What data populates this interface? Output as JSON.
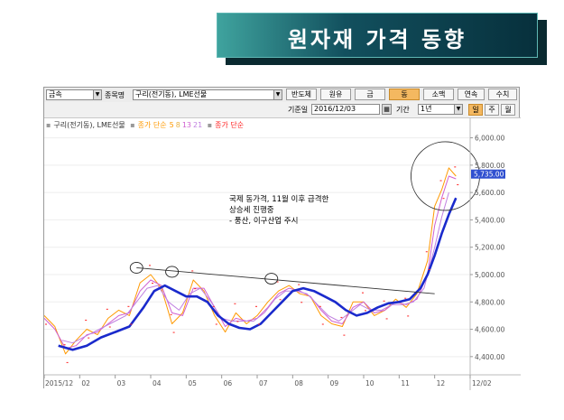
{
  "title": "원자재 가격 동향",
  "toolbar": {
    "category_select": "금속",
    "item_label": "종목명",
    "item_select": "구리(전기동), LME선물",
    "buttons": [
      "반도체",
      "원유",
      "금",
      "동",
      "소맥",
      "연속",
      "수치"
    ],
    "active_button": "동",
    "base_date_label": "기준일",
    "base_date_value": "2016/12/03",
    "period_label": "기간",
    "period_value": "1년",
    "unit_buttons": [
      "일",
      "주",
      "월"
    ],
    "active_unit": "일"
  },
  "legend": {
    "series_name": "구리(전기동), LME선물",
    "ma_label": "종가 단순",
    "ma_periods": [
      "5",
      "8",
      "13",
      "21"
    ],
    "ma2_label": "종가 단순"
  },
  "colors": {
    "price": "#ff2020",
    "ma5": "#ff9900",
    "ma8": "#e8b040",
    "ma13": "#d060d0",
    "ma21": "#c080e0",
    "trend": "#1a2acc",
    "resistance": "#333333",
    "active_btn": "#f4b860"
  },
  "annotation": {
    "line1": "국제 동가격, 11월 이후 급격한",
    "line2": "상승세 진행중",
    "line3": "- 풍산, 이구산업 주시"
  },
  "chart_data": {
    "type": "line",
    "x_ticks": [
      "2015/12",
      "02",
      "03",
      "04",
      "05",
      "06",
      "07",
      "08",
      "09",
      "10",
      "11",
      "12",
      "12/02"
    ],
    "y_ticks": [
      "4,400.00",
      "4,600.00",
      "4,800.00",
      "5,000.00",
      "5,200.00",
      "5,400.00",
      "5,600.00",
      "5,800.00",
      "6,000.00"
    ],
    "ylim": [
      4280,
      6050
    ],
    "last_price_label": "5,735.00",
    "last_price": 5735,
    "series": [
      {
        "key": "ma5",
        "x": [
          0.0,
          0.3,
          0.6,
          0.9,
          1.2,
          1.5,
          1.8,
          2.1,
          2.4,
          2.7,
          3.0,
          3.3,
          3.6,
          3.9,
          4.2,
          4.5,
          4.8,
          5.1,
          5.4,
          5.7,
          6.0,
          6.3,
          6.6,
          6.9,
          7.2,
          7.5,
          7.8,
          8.1,
          8.4,
          8.7,
          9.0,
          9.3,
          9.6,
          9.9,
          10.2,
          10.5,
          10.8,
          11.0,
          11.2,
          11.4,
          11.6
        ],
        "values": [
          4700,
          4620,
          4420,
          4520,
          4600,
          4560,
          4680,
          4740,
          4700,
          4940,
          5000,
          4900,
          4640,
          4720,
          4960,
          4880,
          4700,
          4580,
          4720,
          4640,
          4700,
          4800,
          4880,
          4920,
          4860,
          4840,
          4700,
          4640,
          4620,
          4800,
          4800,
          4700,
          4740,
          4820,
          4760,
          4860,
          5100,
          5500,
          5620,
          5780,
          5720
        ]
      },
      {
        "key": "ma13",
        "x": [
          0.0,
          0.3,
          0.6,
          0.9,
          1.2,
          1.5,
          1.8,
          2.1,
          2.4,
          2.7,
          3.0,
          3.3,
          3.6,
          3.9,
          4.2,
          4.5,
          4.8,
          5.1,
          5.4,
          5.7,
          6.0,
          6.3,
          6.6,
          6.9,
          7.2,
          7.5,
          7.8,
          8.1,
          8.4,
          8.7,
          9.0,
          9.3,
          9.6,
          9.9,
          10.2,
          10.5,
          10.8,
          11.0,
          11.2,
          11.4,
          11.6
        ],
        "values": [
          4680,
          4600,
          4460,
          4480,
          4560,
          4580,
          4640,
          4700,
          4720,
          4880,
          4960,
          4920,
          4720,
          4700,
          4900,
          4900,
          4760,
          4620,
          4680,
          4660,
          4680,
          4760,
          4860,
          4900,
          4880,
          4840,
          4740,
          4660,
          4640,
          4760,
          4800,
          4720,
          4740,
          4800,
          4780,
          4820,
          5000,
          5360,
          5560,
          5720,
          5700
        ]
      },
      {
        "key": "ma21",
        "x": [
          0.5,
          0.8,
          1.1,
          1.4,
          1.7,
          2.0,
          2.3,
          2.6,
          2.9,
          3.2,
          3.5,
          3.8,
          4.1,
          4.4,
          4.7,
          5.0,
          5.3,
          5.6,
          5.9,
          6.2,
          6.5,
          6.8,
          7.1,
          7.4,
          7.7,
          8.0,
          8.3,
          8.6,
          8.9,
          9.2,
          9.5,
          9.8,
          10.1,
          10.4,
          10.7,
          11.0,
          11.2,
          11.4
        ],
        "values": [
          4520,
          4500,
          4540,
          4580,
          4620,
          4660,
          4700,
          4800,
          4900,
          4920,
          4800,
          4740,
          4860,
          4900,
          4800,
          4680,
          4660,
          4660,
          4660,
          4720,
          4820,
          4880,
          4880,
          4860,
          4780,
          4700,
          4660,
          4720,
          4780,
          4740,
          4740,
          4780,
          4780,
          4800,
          4900,
          5200,
          5420,
          5600
        ]
      },
      {
        "key": "trend",
        "x": [
          0.4,
          0.8,
          1.2,
          1.6,
          2.0,
          2.4,
          2.8,
          3.1,
          3.4,
          3.7,
          4.0,
          4.3,
          4.6,
          4.9,
          5.2,
          5.5,
          5.8,
          6.1,
          6.4,
          6.7,
          7.0,
          7.3,
          7.6,
          7.9,
          8.2,
          8.5,
          8.8,
          9.1,
          9.4,
          9.7,
          10.0,
          10.3,
          10.6,
          10.8,
          11.0,
          11.2,
          11.4,
          11.6
        ],
        "values": [
          4480,
          4450,
          4480,
          4540,
          4580,
          4620,
          4760,
          4880,
          4920,
          4880,
          4840,
          4840,
          4800,
          4700,
          4640,
          4610,
          4600,
          4640,
          4720,
          4800,
          4880,
          4900,
          4880,
          4840,
          4800,
          4740,
          4700,
          4720,
          4760,
          4790,
          4800,
          4820,
          4900,
          5000,
          5140,
          5300,
          5440,
          5560
        ]
      }
    ],
    "resistance_line": {
      "x": [
        2.6,
        11.0
      ],
      "values": [
        5050,
        4860
      ]
    },
    "highlight_points": [
      {
        "x": 2.6,
        "value": 5050
      },
      {
        "x": 3.6,
        "value": 5020
      },
      {
        "x": 6.4,
        "value": 4970
      }
    ],
    "highlight_region": {
      "x": 11.3,
      "value": 5720
    }
  }
}
